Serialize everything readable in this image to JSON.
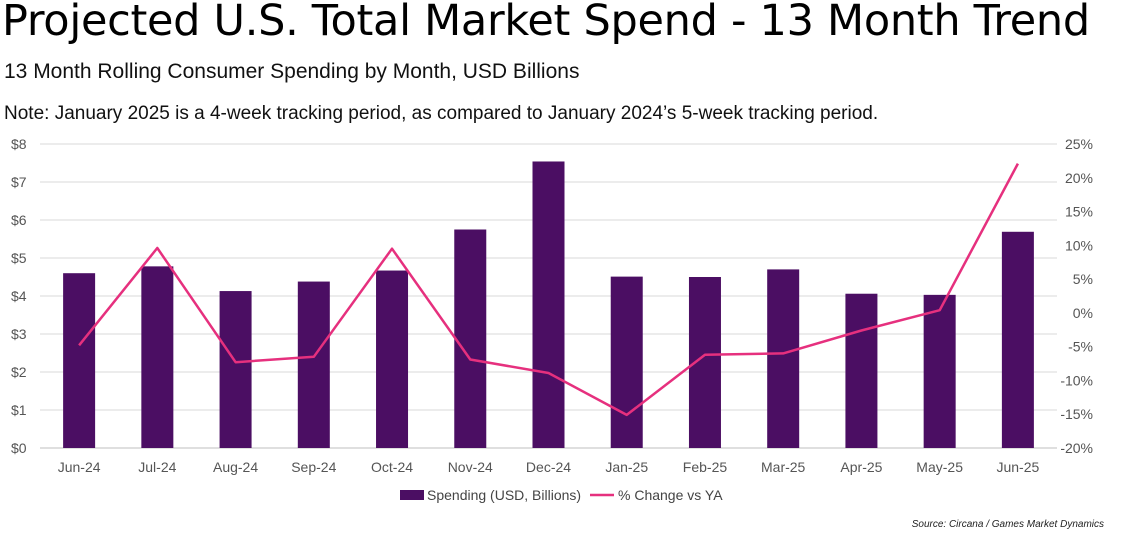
{
  "header": {
    "title": "Projected U.S. Total Market Spend - 13 Month Trend",
    "subtitle": "13 Month Rolling Consumer Spending by Month, USD Billions",
    "note": "Note: January 2025 is a 4-week tracking period, as compared to January 2024’s 5-week tracking period."
  },
  "source": "Source: Circana / Games Market Dynamics",
  "chart_data": {
    "type": "bar",
    "categories": [
      "Jun-24",
      "Jul-24",
      "Aug-24",
      "Sep-24",
      "Oct-24",
      "Nov-24",
      "Dec-24",
      "Jan-25",
      "Feb-25",
      "Mar-25",
      "Apr-25",
      "May-25",
      "Jun-25"
    ],
    "series": [
      {
        "name": "Spending (USD, Billions)",
        "type": "bar",
        "axis": "left",
        "color": "#4b0e63",
        "values": [
          4.6,
          4.78,
          4.13,
          4.38,
          4.67,
          5.75,
          7.54,
          4.51,
          4.5,
          4.7,
          4.06,
          4.03,
          5.69
        ]
      },
      {
        "name": "% Change vs YA",
        "type": "line",
        "axis": "right",
        "color": "#e6307e",
        "values": [
          -4.8,
          9.6,
          -7.3,
          -6.5,
          9.5,
          -6.9,
          -8.9,
          -15.1,
          -6.2,
          -6.0,
          -2.6,
          0.4,
          22.1
        ]
      }
    ],
    "y_left": {
      "min": 0,
      "max": 8,
      "ticks": [
        "$0",
        "$1",
        "$2",
        "$3",
        "$4",
        "$5",
        "$6",
        "$7",
        "$8"
      ]
    },
    "y_right": {
      "min": -20,
      "max": 25,
      "ticks": [
        "-20%",
        "-15%",
        "-10%",
        "-5%",
        "0%",
        "5%",
        "10%",
        "15%",
        "20%",
        "25%"
      ]
    },
    "grid": true,
    "legend_position": "bottom"
  }
}
